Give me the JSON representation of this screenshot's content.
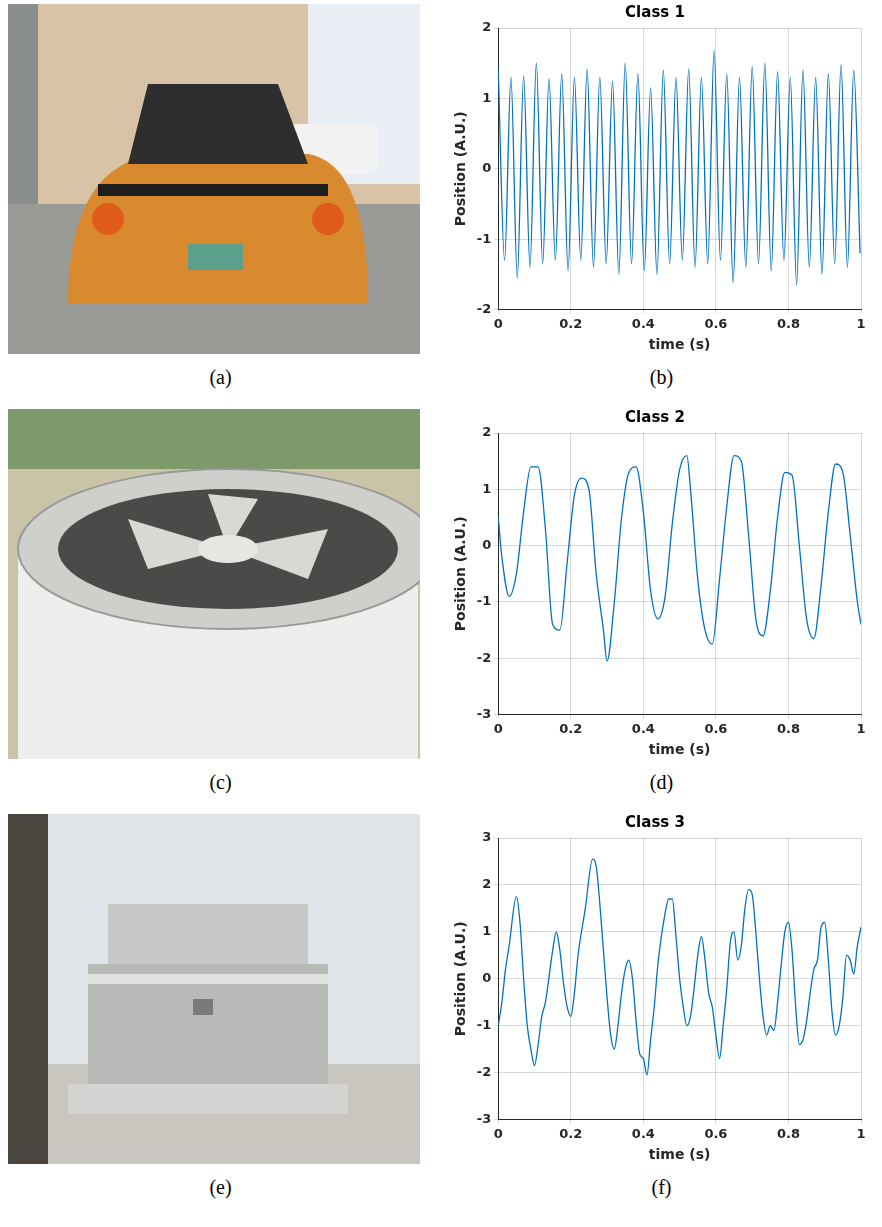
{
  "chart_data": [
    {
      "type": "line",
      "title": "Class 1",
      "x_label": "time (s)",
      "y_label": "Position (A.U.)",
      "caption": "(b)",
      "color": "#0072bd",
      "grid": true,
      "xlim": [
        0,
        1
      ],
      "xticks": [
        0,
        0.2,
        0.4,
        0.6,
        0.8,
        1
      ],
      "ylim": [
        -2,
        2
      ],
      "yticks": [
        -2,
        -1,
        0,
        1,
        2
      ],
      "x": [
        0,
        0.0175,
        0.035,
        0.0525,
        0.07,
        0.0875,
        0.105,
        0.1225,
        0.14,
        0.1575,
        0.175,
        0.1925,
        0.21,
        0.2275,
        0.245,
        0.2625,
        0.28,
        0.2975,
        0.315,
        0.3325,
        0.35,
        0.3675,
        0.385,
        0.4025,
        0.42,
        0.4375,
        0.455,
        0.4725,
        0.49,
        0.5075,
        0.525,
        0.5425,
        0.56,
        0.5775,
        0.595,
        0.6125,
        0.63,
        0.6475,
        0.665,
        0.6825,
        0.7,
        0.7175,
        0.735,
        0.7525,
        0.77,
        0.7875,
        0.805,
        0.8225,
        0.84,
        0.8575,
        0.875,
        0.8925,
        0.91,
        0.9275,
        0.945,
        0.9625,
        0.98,
        0.9975
      ],
      "values": [
        1.4,
        -1.3,
        1.3,
        -1.55,
        1.32,
        -1.4,
        1.5,
        -1.35,
        1.28,
        -1.3,
        1.35,
        -1.45,
        1.3,
        -1.3,
        1.42,
        -1.4,
        1.3,
        -1.35,
        1.25,
        -1.5,
        1.5,
        -1.35,
        1.35,
        -1.45,
        1.15,
        -1.5,
        1.4,
        -1.35,
        1.3,
        -1.3,
        1.42,
        -1.4,
        1.3,
        -1.35,
        1.68,
        -1.3,
        1.35,
        -1.62,
        1.3,
        -1.4,
        1.45,
        -1.35,
        1.5,
        -1.45,
        1.38,
        -1.3,
        1.3,
        -1.65,
        1.4,
        -1.4,
        1.3,
        -1.5,
        1.35,
        -1.35,
        1.48,
        -1.4,
        1.4,
        -1.2
      ]
    },
    {
      "type": "line",
      "title": "Class 2",
      "x_label": "time (s)",
      "y_label": "Position (A.U.)",
      "caption": "(d)",
      "color": "#0072bd",
      "grid": true,
      "xlim": [
        0,
        1
      ],
      "xticks": [
        0,
        0.2,
        0.4,
        0.6,
        0.8,
        1
      ],
      "ylim": [
        -3,
        2
      ],
      "yticks": [
        -3,
        -2,
        -1,
        0,
        1,
        2
      ],
      "x": [
        0,
        0.01,
        0.03,
        0.05,
        0.07,
        0.09,
        0.11,
        0.13,
        0.15,
        0.17,
        0.19,
        0.21,
        0.23,
        0.25,
        0.27,
        0.29,
        0.3,
        0.32,
        0.34,
        0.36,
        0.38,
        0.4,
        0.42,
        0.44,
        0.46,
        0.48,
        0.5,
        0.52,
        0.53,
        0.55,
        0.57,
        0.59,
        0.61,
        0.63,
        0.65,
        0.67,
        0.69,
        0.71,
        0.73,
        0.75,
        0.77,
        0.79,
        0.81,
        0.83,
        0.85,
        0.87,
        0.89,
        0.91,
        0.93,
        0.95,
        0.97,
        0.99,
        1
      ],
      "values": [
        0.5,
        -0.2,
        -0.9,
        -0.5,
        0.6,
        1.4,
        1.4,
        0.3,
        -1.4,
        -1.5,
        -0.3,
        0.9,
        1.2,
        1.0,
        -0.5,
        -1.5,
        -2.05,
        -1.0,
        0.5,
        1.3,
        1.4,
        0.6,
        -0.8,
        -1.3,
        -0.9,
        0.4,
        1.35,
        1.6,
        1.0,
        -0.6,
        -1.5,
        -1.75,
        -0.6,
        0.7,
        1.6,
        1.5,
        0.2,
        -1.3,
        -1.6,
        -0.8,
        0.5,
        1.3,
        1.25,
        0.0,
        -1.3,
        -1.65,
        -0.7,
        0.6,
        1.45,
        1.3,
        0.2,
        -1.0,
        -1.4
      ]
    },
    {
      "type": "line",
      "title": "Class 3",
      "x_label": "time (s)",
      "y_label": "Position (A.U.)",
      "caption": "(f)",
      "color": "#0072bd",
      "grid": true,
      "xlim": [
        0,
        1
      ],
      "xticks": [
        0,
        0.2,
        0.4,
        0.6,
        0.8,
        1
      ],
      "ylim": [
        -3,
        3
      ],
      "yticks": [
        -3,
        -2,
        -1,
        0,
        1,
        2,
        3
      ],
      "x": [
        0,
        0.01,
        0.02,
        0.03,
        0.05,
        0.06,
        0.07,
        0.08,
        0.09,
        0.1,
        0.11,
        0.12,
        0.13,
        0.15,
        0.16,
        0.17,
        0.18,
        0.19,
        0.2,
        0.21,
        0.22,
        0.24,
        0.26,
        0.27,
        0.28,
        0.29,
        0.3,
        0.31,
        0.32,
        0.33,
        0.34,
        0.35,
        0.36,
        0.37,
        0.38,
        0.39,
        0.4,
        0.41,
        0.42,
        0.43,
        0.44,
        0.46,
        0.47,
        0.48,
        0.49,
        0.5,
        0.51,
        0.52,
        0.53,
        0.54,
        0.55,
        0.56,
        0.57,
        0.58,
        0.59,
        0.6,
        0.61,
        0.62,
        0.63,
        0.64,
        0.65,
        0.66,
        0.67,
        0.68,
        0.69,
        0.7,
        0.71,
        0.72,
        0.73,
        0.74,
        0.75,
        0.76,
        0.77,
        0.78,
        0.79,
        0.8,
        0.81,
        0.82,
        0.83,
        0.84,
        0.85,
        0.86,
        0.87,
        0.88,
        0.89,
        0.9,
        0.91,
        0.92,
        0.93,
        0.94,
        0.95,
        0.96,
        0.97,
        0.98,
        0.99,
        1
      ],
      "values": [
        -1.0,
        -0.5,
        0.2,
        0.7,
        1.75,
        1.2,
        0.0,
        -1.0,
        -1.5,
        -1.85,
        -1.4,
        -0.8,
        -0.5,
        0.6,
        1.0,
        0.6,
        -0.1,
        -0.6,
        -0.8,
        -0.3,
        0.5,
        1.5,
        2.55,
        2.4,
        1.6,
        0.6,
        -0.4,
        -1.2,
        -1.5,
        -1.0,
        -0.3,
        0.2,
        0.4,
        0.0,
        -0.9,
        -1.6,
        -1.7,
        -2.05,
        -1.3,
        -0.6,
        0.3,
        1.4,
        1.7,
        1.7,
        0.9,
        0.0,
        -0.6,
        -1.0,
        -0.8,
        -0.2,
        0.5,
        0.9,
        0.4,
        -0.3,
        -0.6,
        -1.2,
        -1.7,
        -1.0,
        -0.2,
        0.8,
        1.0,
        0.4,
        0.7,
        1.5,
        1.9,
        1.8,
        1.0,
        0.0,
        -0.8,
        -1.2,
        -1.0,
        -1.1,
        -0.5,
        0.3,
        1.0,
        1.2,
        0.6,
        -0.6,
        -1.4,
        -1.3,
        -0.9,
        -0.3,
        0.2,
        0.4,
        1.1,
        1.2,
        0.4,
        -0.7,
        -1.2,
        -1.0,
        -0.4,
        0.5,
        0.4,
        0.1,
        0.7,
        1.1
      ]
    }
  ],
  "photos": [
    {
      "caption": "(a)"
    },
    {
      "caption": "(c)"
    },
    {
      "caption": "(e)"
    }
  ]
}
